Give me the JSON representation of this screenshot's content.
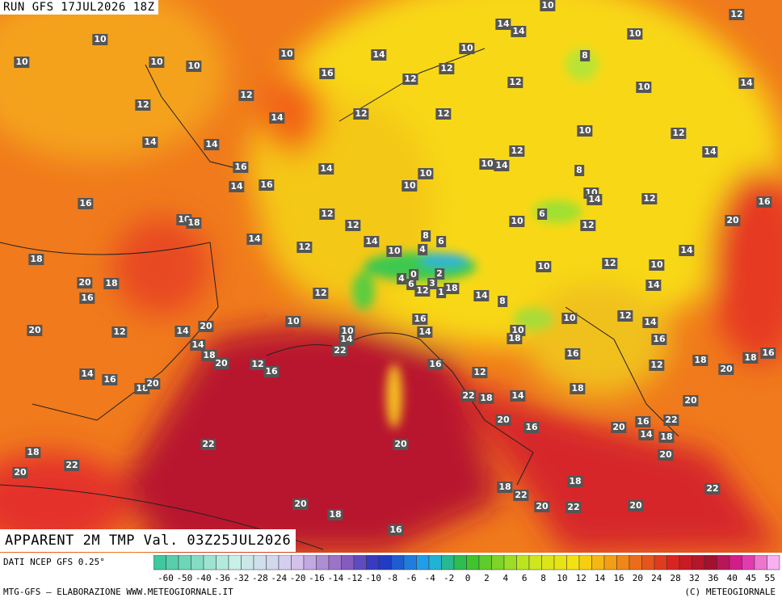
{
  "header": {
    "run": "RUN GFS 17JUL2026 18Z",
    "field": "APPARENT 2M TMP Val. 03Z25JUL2026"
  },
  "footer": {
    "source": "DATI NCEP GFS 0.25°",
    "credit": "MTG-GFS — ELABORAZIONE WWW.METEOGIORNALE.IT",
    "copyright": "(C) METEOGIORNALE"
  },
  "colorbar": {
    "labels": [
      -60,
      -50,
      -40,
      -36,
      -32,
      -28,
      -24,
      -20,
      -16,
      -14,
      -12,
      -10,
      -8,
      -6,
      -4,
      -2,
      0,
      2,
      4,
      6,
      8,
      10,
      12,
      14,
      16,
      20,
      24,
      28,
      32,
      36,
      40,
      45,
      55
    ]
  },
  "stations": [
    10,
    10,
    10,
    10,
    10,
    16,
    14,
    12,
    12,
    10,
    14,
    14,
    10,
    12,
    10,
    8,
    12,
    10,
    14,
    12,
    12,
    14,
    12,
    12,
    14,
    14,
    16,
    14,
    16,
    14,
    10,
    10,
    10,
    14,
    12,
    10,
    8,
    12,
    14,
    16,
    10,
    18,
    14,
    12,
    12,
    14,
    12,
    10,
    8,
    6,
    4,
    10,
    14,
    12,
    6,
    10,
    12,
    20,
    16,
    18,
    20,
    18,
    16,
    4,
    0,
    2,
    6,
    3,
    12,
    18,
    1,
    12,
    14,
    8,
    10,
    12,
    10,
    14,
    14,
    20,
    12,
    14,
    20,
    14,
    18,
    20,
    12,
    16,
    10,
    10,
    14,
    22,
    16,
    14,
    10,
    18,
    10,
    12,
    14,
    16,
    16,
    18,
    18,
    16,
    20,
    12,
    14,
    16,
    18,
    20,
    16,
    12,
    22,
    18,
    14,
    18,
    20,
    20,
    16,
    20,
    16,
    22,
    14,
    18,
    20,
    22,
    20,
    18,
    22,
    20,
    18,
    22,
    18,
    20,
    22,
    20,
    22,
    20,
    18,
    16
  ]
}
